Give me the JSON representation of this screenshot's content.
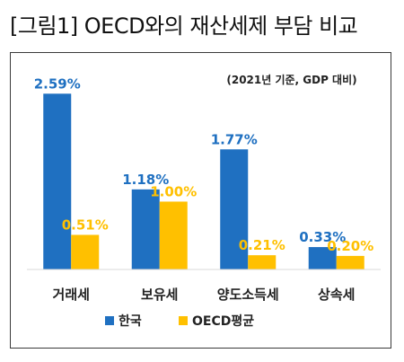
{
  "page_title": "[그림1] OECD와의 재산세제 부담 비교",
  "colors": {
    "korea": "#1F70C1",
    "oecd": "#FFC000",
    "axis": "#D9D9D9",
    "frame": "#3a3a3a"
  },
  "chart_data": {
    "type": "bar",
    "title": "",
    "note": "(2021년 기준, GDP 대비)",
    "xlabel": "",
    "ylabel": "",
    "ylim": [
      0,
      2.7
    ],
    "grid": false,
    "legend_position": "bottom",
    "categories": [
      "거래세",
      "보유세",
      "양도소득세",
      "상속세"
    ],
    "series": [
      {
        "name": "한국",
        "color": "#1F70C1",
        "values": [
          2.59,
          1.18,
          1.77,
          0.33
        ],
        "labels": [
          "2.59%",
          "1.18%",
          "1.77%",
          "0.33%"
        ]
      },
      {
        "name": "OECD평균",
        "color": "#FFC000",
        "values": [
          0.51,
          1.0,
          0.21,
          0.2
        ],
        "labels": [
          "0.51%",
          "1.00%",
          "0.21%",
          "0.20%"
        ]
      }
    ]
  }
}
